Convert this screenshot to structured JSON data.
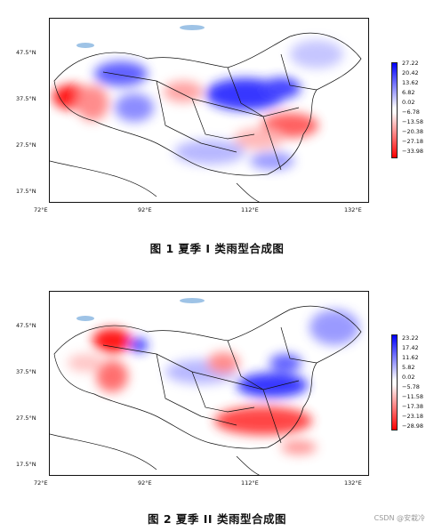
{
  "figures": [
    {
      "caption": "图 1 夏季 I 类雨型合成图",
      "x_ticks": [
        "72°E",
        "92°E",
        "112°E",
        "132°E"
      ],
      "y_ticks": [
        "47.5°N",
        "37.5°N",
        "27.5°N",
        "17.5°N"
      ],
      "colorbar": [
        "27.22",
        "20.42",
        "13.62",
        "6.82",
        "0.02",
        "−6.78",
        "−13.58",
        "−20.38",
        "−27.18",
        "−33.98"
      ]
    },
    {
      "caption": "图 2 夏季 II 类雨型合成图",
      "x_ticks": [
        "72°E",
        "92°E",
        "112°E",
        "132°E"
      ],
      "y_ticks": [
        "47.5°N",
        "37.5°N",
        "27.5°N",
        "17.5°N"
      ],
      "colorbar": [
        "23.22",
        "17.42",
        "11.62",
        "5.82",
        "0.02",
        "−5.78",
        "−11.58",
        "−17.38",
        "−23.18",
        "−28.98"
      ]
    }
  ],
  "watermark": "CSDN @安栽冷",
  "colors": {
    "positive": "#0000ff",
    "negative": "#ff0000",
    "neutral": "#ffffff",
    "water": "#9ec3e6"
  }
}
